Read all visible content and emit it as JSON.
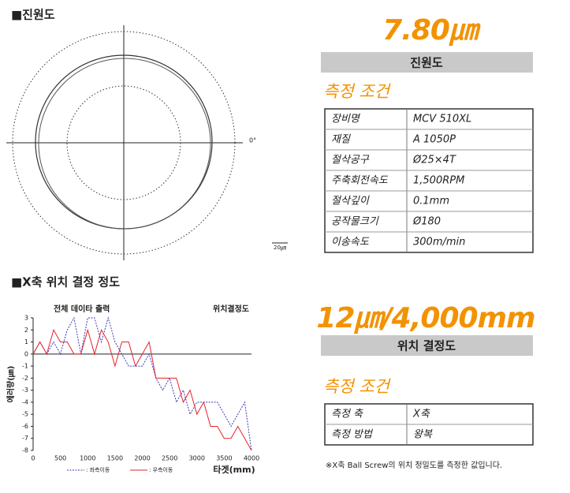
{
  "roundness": {
    "heading": "■진원도",
    "angle_label": "0°",
    "scale_label": "20㎛",
    "result": "7.80㎛",
    "result_caption": "진원도",
    "conditions_title": "측정 조건",
    "table": {
      "rows": [
        [
          "장비명",
          "MCV 510XL"
        ],
        [
          "재질",
          "A 1050P"
        ],
        [
          "절삭공구",
          "Ø25×4T"
        ],
        [
          "주축회전속도",
          "1,500RPM"
        ],
        [
          "절삭깊이",
          "0.1mm"
        ],
        [
          "공작물크기",
          "Ø180"
        ],
        [
          "이송속도",
          "300m/min"
        ]
      ]
    }
  },
  "positioning": {
    "heading": "■X축 위치 결정 정도",
    "result": "12㎛/4,000mm",
    "result_caption": "위치 결정도",
    "conditions_title": "측정 조건",
    "table": {
      "rows": [
        [
          "측정 축",
          "X축"
        ],
        [
          "측정 방법",
          "왕복"
        ]
      ]
    },
    "footnote": "※X축 Ball Screw의 위치 정밀도를 측정한 값입니다."
  },
  "chart_data": {
    "type": "line",
    "title": "전체 데이타 출력",
    "subtitle": "위치결정도",
    "y_label": "에러량(㎛)",
    "x_label": "타겟(mm)",
    "x": [
      0,
      125,
      250,
      375,
      500,
      625,
      750,
      875,
      1000,
      1125,
      1250,
      1375,
      1500,
      1625,
      1750,
      1875,
      2000,
      2125,
      2250,
      2375,
      2500,
      2625,
      2750,
      2875,
      3000,
      3125,
      3250,
      3375,
      3500,
      3625,
      3750,
      3875,
      4000
    ],
    "series": [
      {
        "name": ": 좌측이동",
        "color": "#3a3ab8",
        "dash": true,
        "values": [
          0,
          1,
          0,
          1,
          0,
          2,
          3,
          0,
          3,
          3,
          1,
          3,
          1,
          0,
          -1,
          -1,
          -1,
          0,
          -2,
          -3,
          -2,
          -4,
          -3,
          -5,
          -4,
          -4,
          -4,
          -4,
          -5,
          -6,
          -5,
          -4,
          -8
        ]
      },
      {
        "name": ": 우측이동",
        "color": "#e8202a",
        "dash": false,
        "values": [
          0,
          1,
          0,
          2,
          1,
          1,
          0,
          0,
          2,
          0,
          2,
          1,
          -1,
          1,
          1,
          -1,
          0,
          1,
          -2,
          -2,
          -2,
          -2,
          -4,
          -3,
          -5,
          -4,
          -6,
          -6,
          -7,
          -7,
          -6,
          -7,
          -8
        ]
      }
    ],
    "xlim": [
      0,
      4000
    ],
    "ylim": [
      -8,
      3
    ],
    "xticks": [
      0,
      500,
      1000,
      1500,
      2000,
      2500,
      3000,
      3500,
      4000
    ],
    "yticks": [
      3,
      2,
      1,
      0,
      -1,
      -2,
      -3,
      -4,
      -5,
      -6,
      -7,
      -8
    ]
  }
}
